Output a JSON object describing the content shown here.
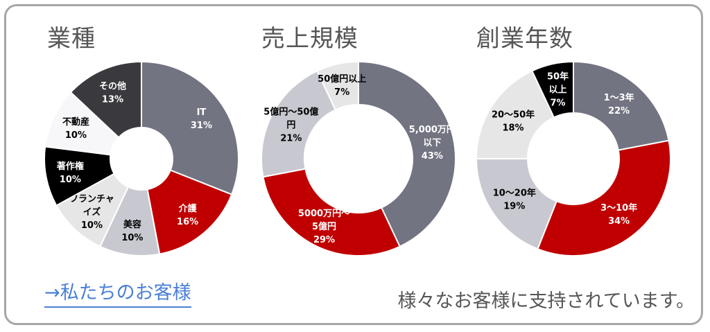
{
  "chart_data": [
    {
      "type": "pie",
      "title": "業種",
      "unit": "%",
      "slices": [
        {
          "label": [
            "IT"
          ],
          "value": 31,
          "color": "#737482",
          "text_color": "#ffffff"
        },
        {
          "label": [
            "介護"
          ],
          "value": 16,
          "color": "#c00000",
          "text_color": "#ffffff"
        },
        {
          "label": [
            "美容"
          ],
          "value": 10,
          "color": "#c8c9d0",
          "text_color": "#000000"
        },
        {
          "label": [
            "フランチャ",
            "イズ"
          ],
          "value": 10,
          "color": "#e6e6e6",
          "text_color": "#000000"
        },
        {
          "label": [
            "著作権"
          ],
          "value": 10,
          "color": "#000000",
          "text_color": "#ffffff"
        },
        {
          "label": [
            "不動産"
          ],
          "value": 10,
          "color": "#f7f7f9",
          "text_color": "#000000"
        },
        {
          "label": [
            "その他"
          ],
          "value": 13,
          "color": "#3a3a3e",
          "text_color": "#ffffff"
        }
      ]
    },
    {
      "type": "pie",
      "title": "売上規模",
      "unit": "%",
      "slices": [
        {
          "label": [
            "5,000万円",
            "以下"
          ],
          "value": 43,
          "color": "#737482",
          "text_color": "#ffffff"
        },
        {
          "label": [
            "5000万円～",
            "5億円"
          ],
          "value": 29,
          "color": "#c00000",
          "text_color": "#ffffff"
        },
        {
          "label": [
            "5億円～50億",
            "円"
          ],
          "value": 21,
          "color": "#c8c9d0",
          "text_color": "#000000"
        },
        {
          "label": [
            "50億円以上"
          ],
          "value": 7,
          "color": "#e6e6e6",
          "text_color": "#000000"
        }
      ]
    },
    {
      "type": "pie",
      "title": "創業年数",
      "unit": "%",
      "slices": [
        {
          "label": [
            "1～3年"
          ],
          "value": 22,
          "color": "#737482",
          "text_color": "#ffffff"
        },
        {
          "label": [
            "3～10年"
          ],
          "value": 34,
          "color": "#c00000",
          "text_color": "#ffffff"
        },
        {
          "label": [
            "10～20年"
          ],
          "value": 19,
          "color": "#c8c9d0",
          "text_color": "#000000"
        },
        {
          "label": [
            "20～50年"
          ],
          "value": 18,
          "color": "#e6e6e6",
          "text_color": "#000000"
        },
        {
          "label": [
            "50年",
            "以上"
          ],
          "value": 7,
          "color": "#000000",
          "text_color": "#ffffff"
        }
      ]
    }
  ],
  "footer": {
    "link_label": "→私たちのお客様",
    "tagline": "様々なお客様に支持されています。"
  }
}
